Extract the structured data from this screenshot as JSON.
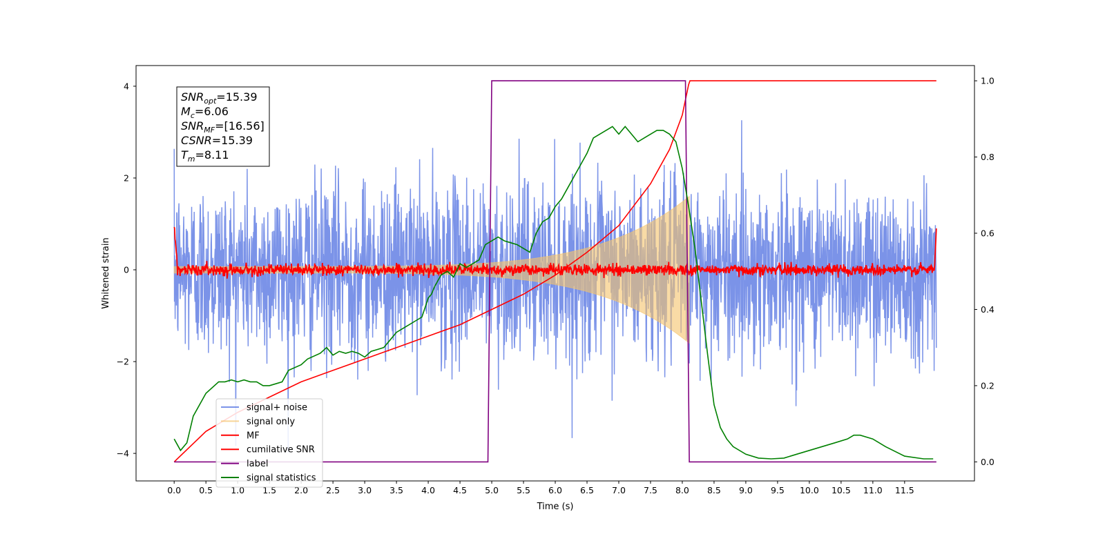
{
  "chart_data": {
    "type": "line",
    "xlabel": "Time (s)",
    "ylabel_left": "Whitened strain",
    "ylabel_right": "",
    "xlim": [
      -0.6,
      12.6
    ],
    "ylim_left": [
      -4.6,
      4.45
    ],
    "ylim_right": [
      -0.05,
      1.04
    ],
    "x_ticks": [
      "0.0",
      "0.5",
      "1.0",
      "1.5",
      "2.0",
      "2.5",
      "3.0",
      "3.5",
      "4.0",
      "4.5",
      "5.0",
      "5.5",
      "6.0",
      "6.5",
      "7.0",
      "7.5",
      "8.0",
      "8.5",
      "9.0",
      "9.5",
      "10.0",
      "10.5",
      "11.0",
      "11.5"
    ],
    "y_ticks_left": [
      "4",
      "2",
      "0",
      "−2",
      "−4"
    ],
    "y_ticks_right": [
      "1.0",
      "0.8",
      "0.6",
      "0.4",
      "0.2",
      "0.0"
    ],
    "grid": false,
    "legend_placement": "lower-left",
    "annotation": {
      "lines": [
        {
          "base": "SNR",
          "sub": "opt",
          "value": "=15.39"
        },
        {
          "base": "M",
          "sub": "c",
          "value": "=6.06"
        },
        {
          "base": "SNR",
          "sub": "MF",
          "value": "=[16.56]"
        },
        {
          "base": "CSNR",
          "sub": "",
          "value": "=15.39"
        },
        {
          "base": "T",
          "sub": "m",
          "value": "=8.11"
        }
      ]
    },
    "series": [
      {
        "name": "signal+ noise",
        "axis": "left",
        "color": "#4f6fe0",
        "kind": "noise",
        "x_start": 0.0,
        "x_end": 12.0,
        "std": 0.95,
        "peak": 4.0
      },
      {
        "name": "signal only",
        "axis": "left",
        "color": "#f5c36b",
        "kind": "chirp",
        "x_start": 0.0,
        "x_end": 8.11,
        "amp_start": 0.07,
        "amp_end": 1.6
      },
      {
        "name": "MF",
        "axis": "left",
        "color": "#ff0000",
        "kind": "mf",
        "x_start": 0.0,
        "x_end": 12.0,
        "std": 0.06
      },
      {
        "name": "cumilative SNR",
        "axis": "right",
        "color": "#ff0000",
        "x": [
          0.0,
          0.5,
          1.0,
          1.5,
          2.0,
          2.5,
          3.0,
          3.5,
          4.0,
          4.5,
          5.0,
          5.5,
          6.0,
          6.5,
          7.0,
          7.5,
          7.8,
          8.0,
          8.1,
          8.12,
          12.0
        ],
        "y": [
          0.0,
          0.08,
          0.13,
          0.17,
          0.21,
          0.24,
          0.27,
          0.3,
          0.33,
          0.36,
          0.4,
          0.44,
          0.49,
          0.55,
          0.62,
          0.73,
          0.82,
          0.91,
          0.99,
          1.0,
          1.0
        ]
      },
      {
        "name": "label",
        "axis": "right",
        "color": "#800080",
        "x": [
          0.0,
          4.94,
          5.0,
          8.05,
          8.11,
          12.0
        ],
        "y": [
          0.0,
          0.0,
          1.0,
          1.0,
          0.0,
          0.0
        ]
      },
      {
        "name": "signal statistics",
        "axis": "right",
        "color": "#008000",
        "x": [
          0.0,
          0.1,
          0.2,
          0.3,
          0.5,
          0.7,
          0.8,
          0.9,
          1.0,
          1.1,
          1.2,
          1.3,
          1.4,
          1.5,
          1.6,
          1.7,
          1.8,
          2.0,
          2.1,
          2.3,
          2.4,
          2.5,
          2.6,
          2.7,
          2.8,
          2.9,
          3.0,
          3.1,
          3.2,
          3.3,
          3.4,
          3.5,
          3.6,
          3.7,
          3.8,
          3.9,
          4.0,
          4.05,
          4.1,
          4.2,
          4.3,
          4.4,
          4.5,
          4.6,
          4.7,
          4.8,
          4.9,
          5.0,
          5.1,
          5.2,
          5.3,
          5.4,
          5.5,
          5.6,
          5.7,
          5.8,
          5.9,
          6.0,
          6.1,
          6.2,
          6.3,
          6.4,
          6.5,
          6.6,
          6.7,
          6.8,
          6.9,
          7.0,
          7.1,
          7.2,
          7.3,
          7.4,
          7.5,
          7.6,
          7.7,
          7.8,
          7.9,
          8.0,
          8.1,
          8.2,
          8.3,
          8.4,
          8.5,
          8.6,
          8.7,
          8.8,
          9.0,
          9.2,
          9.4,
          9.6,
          9.8,
          10.0,
          10.2,
          10.4,
          10.6,
          10.7,
          10.8,
          11.0,
          11.2,
          11.5,
          11.8,
          11.95
        ],
        "y": [
          0.06,
          0.03,
          0.05,
          0.12,
          0.18,
          0.21,
          0.21,
          0.215,
          0.21,
          0.215,
          0.21,
          0.21,
          0.2,
          0.2,
          0.205,
          0.21,
          0.24,
          0.255,
          0.27,
          0.285,
          0.3,
          0.28,
          0.29,
          0.285,
          0.29,
          0.285,
          0.275,
          0.29,
          0.295,
          0.3,
          0.32,
          0.34,
          0.35,
          0.36,
          0.37,
          0.38,
          0.43,
          0.44,
          0.46,
          0.49,
          0.5,
          0.485,
          0.52,
          0.51,
          0.52,
          0.53,
          0.57,
          0.58,
          0.59,
          0.58,
          0.575,
          0.57,
          0.56,
          0.55,
          0.6,
          0.63,
          0.64,
          0.67,
          0.69,
          0.72,
          0.75,
          0.78,
          0.81,
          0.85,
          0.86,
          0.87,
          0.88,
          0.86,
          0.88,
          0.86,
          0.84,
          0.85,
          0.86,
          0.87,
          0.87,
          0.86,
          0.84,
          0.77,
          0.67,
          0.56,
          0.42,
          0.28,
          0.15,
          0.09,
          0.06,
          0.04,
          0.02,
          0.01,
          0.008,
          0.01,
          0.02,
          0.03,
          0.04,
          0.05,
          0.06,
          0.07,
          0.07,
          0.06,
          0.04,
          0.015,
          0.008,
          0.008
        ]
      }
    ]
  }
}
